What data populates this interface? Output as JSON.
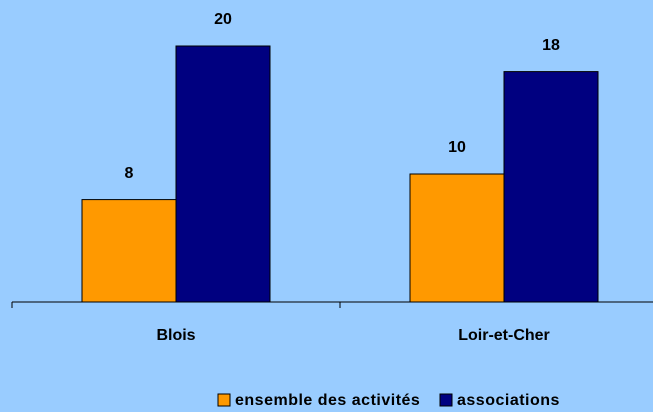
{
  "chart_data": {
    "type": "bar",
    "categories": [
      "Blois",
      "Loir-et-Cher"
    ],
    "series": [
      {
        "name": "ensemble des activités",
        "color": "#ff9900",
        "values": [
          8,
          10
        ]
      },
      {
        "name": "associations",
        "color": "#000080",
        "values": [
          20,
          18
        ]
      }
    ],
    "ylim": [
      0,
      20
    ]
  }
}
